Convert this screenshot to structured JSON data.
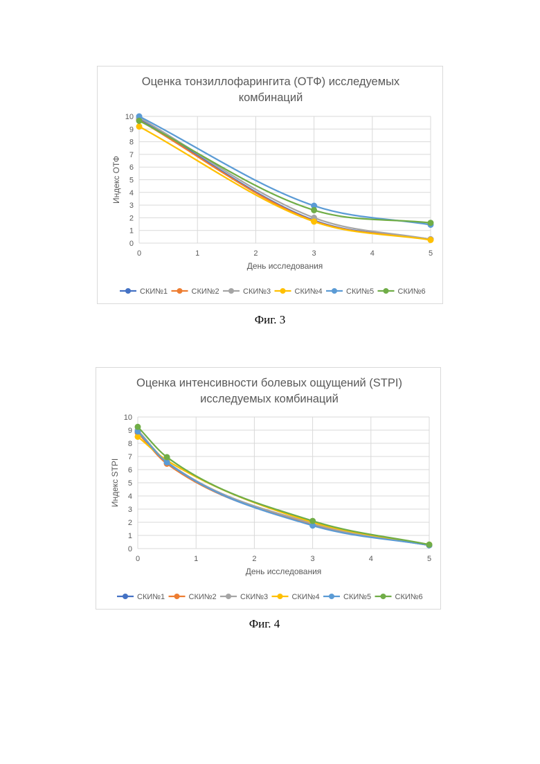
{
  "page": {
    "fig3_caption": "Фиг. 3",
    "fig4_caption": "Фиг. 4"
  },
  "chart_data": [
    {
      "type": "line",
      "title_line1": "Оценка тонзиллофарингита (ОТФ) исследуемых",
      "title_line2": "комбинаций",
      "xlabel": "День исследования",
      "ylabel": "Индекс ОТФ",
      "xlim": [
        0,
        5
      ],
      "ylim": [
        0,
        10
      ],
      "xticks": [
        0,
        1,
        2,
        3,
        4,
        5
      ],
      "yticks": [
        0,
        1,
        2,
        3,
        4,
        5,
        6,
        7,
        8,
        9,
        10
      ],
      "grid": true,
      "legend_position": "bottom",
      "x": [
        0,
        3,
        5
      ],
      "series": [
        {
          "name": "СКИ№1",
          "color": "#4472C4",
          "values": [
            9.8,
            1.8,
            0.3
          ]
        },
        {
          "name": "СКИ№2",
          "color": "#ED7D31",
          "values": [
            9.7,
            1.75,
            0.3
          ]
        },
        {
          "name": "СКИ№3",
          "color": "#A5A5A5",
          "values": [
            9.9,
            2.0,
            0.3
          ]
        },
        {
          "name": "СКИ№4",
          "color": "#FFC000",
          "values": [
            9.2,
            1.7,
            0.25
          ]
        },
        {
          "name": "СКИ№5",
          "color": "#5B9BD5",
          "values": [
            10.0,
            2.95,
            1.45
          ]
        },
        {
          "name": "СКИ№6",
          "color": "#70AD47",
          "values": [
            9.65,
            2.6,
            1.6
          ]
        }
      ]
    },
    {
      "type": "line",
      "title_line1": "Оценка интенсивности болевых ощущений (STPI)",
      "title_line2": "исследуемых комбинаций",
      "xlabel": "День исследования",
      "ylabel": "Индекс STPI",
      "xlim": [
        0,
        5
      ],
      "ylim": [
        0,
        10
      ],
      "xticks": [
        0,
        1,
        2,
        3,
        4,
        5
      ],
      "yticks": [
        0,
        1,
        2,
        3,
        4,
        5,
        6,
        7,
        8,
        9,
        10
      ],
      "grid": true,
      "legend_position": "bottom",
      "x": [
        0,
        0.5,
        3,
        5
      ],
      "series": [
        {
          "name": "СКИ№1",
          "color": "#4472C4",
          "values": [
            8.9,
            6.5,
            1.8,
            0.25
          ]
        },
        {
          "name": "СКИ№2",
          "color": "#ED7D31",
          "values": [
            8.8,
            6.45,
            1.85,
            0.25
          ]
        },
        {
          "name": "СКИ№3",
          "color": "#A5A5A5",
          "values": [
            9.0,
            6.6,
            1.9,
            0.25
          ]
        },
        {
          "name": "СКИ№4",
          "color": "#FFC000",
          "values": [
            8.5,
            6.7,
            2.0,
            0.3
          ]
        },
        {
          "name": "СКИ№5",
          "color": "#5B9BD5",
          "values": [
            8.9,
            6.55,
            1.75,
            0.25
          ]
        },
        {
          "name": "СКИ№6",
          "color": "#70AD47",
          "values": [
            9.25,
            6.95,
            2.1,
            0.3
          ]
        }
      ]
    }
  ]
}
